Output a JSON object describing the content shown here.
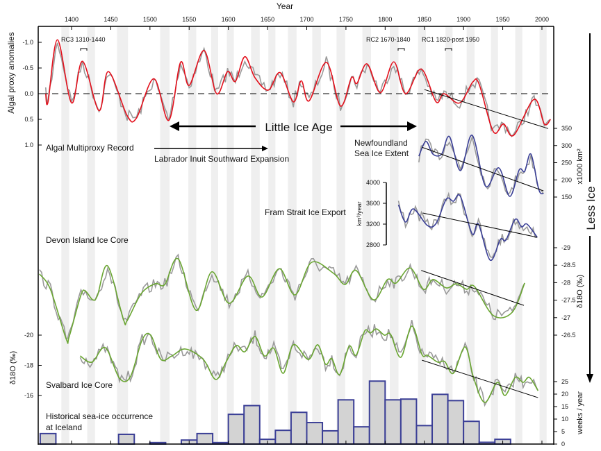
{
  "chart_data": {
    "type": "line",
    "xlabel": "Year",
    "x_ticks": [
      1400,
      1450,
      1500,
      1550,
      1600,
      1650,
      1700,
      1750,
      1800,
      1850,
      1900,
      1950,
      2000
    ],
    "xlim": [
      1357,
      2015
    ],
    "shaded_periods": [
      [
        1387,
        1397
      ],
      [
        1420,
        1430
      ],
      [
        1458,
        1472
      ],
      [
        1513,
        1525
      ],
      [
        1549,
        1559
      ],
      [
        1578,
        1587
      ],
      [
        1598,
        1607
      ],
      [
        1629,
        1640
      ],
      [
        1651,
        1660
      ],
      [
        1676,
        1687
      ],
      [
        1707,
        1718
      ],
      [
        1738,
        1749
      ],
      [
        1771,
        1782
      ],
      [
        1806,
        1817
      ],
      [
        1842,
        1852
      ],
      [
        1877,
        1886
      ],
      [
        1904,
        1914
      ],
      [
        1935,
        1944
      ],
      [
        1966,
        1975
      ],
      [
        1997,
        2006
      ]
    ],
    "colors": {
      "algal": "#e3101c",
      "raw": "#9a9a9a",
      "sea_ice": "#3a3f96",
      "isotope": "#6aa632",
      "bars_fill": "#d3d3d3",
      "bars_edge": "#3b3f96",
      "trend": "#000000"
    },
    "panels": {
      "algal": {
        "label": "Algal Multiproxy Record",
        "ylabel": "Algal proxy anomalies",
        "y_ticks": [
          "-1.0",
          "-0.5",
          "0.0",
          "0.5",
          "1.0"
        ],
        "ylim": [
          -1.25,
          1.0
        ],
        "inverted": true,
        "smoothed": [
          [
            1367,
            0.0
          ],
          [
            1370,
            0.16
          ],
          [
            1382,
            -1.05
          ],
          [
            1400,
            0.18
          ],
          [
            1414,
            -0.63
          ],
          [
            1435,
            0.33
          ],
          [
            1447,
            -0.43
          ],
          [
            1471,
            0.43
          ],
          [
            1483,
            0.47
          ],
          [
            1505,
            -0.29
          ],
          [
            1524,
            0.52
          ],
          [
            1539,
            -0.61
          ],
          [
            1550,
            -0.16
          ],
          [
            1569,
            -0.84
          ],
          [
            1585,
            0.0
          ],
          [
            1599,
            -0.43
          ],
          [
            1609,
            -0.24
          ],
          [
            1621,
            -0.72
          ],
          [
            1634,
            -0.31
          ],
          [
            1651,
            -0.07
          ],
          [
            1666,
            -0.41
          ],
          [
            1683,
            0.16
          ],
          [
            1693,
            -0.25
          ],
          [
            1703,
            0.14
          ],
          [
            1725,
            -0.61
          ],
          [
            1743,
            0.24
          ],
          [
            1757,
            -0.31
          ],
          [
            1764,
            -0.2
          ],
          [
            1777,
            -0.58
          ],
          [
            1794,
            -0.02
          ],
          [
            1811,
            -0.62
          ],
          [
            1826,
            0.0
          ],
          [
            1846,
            -0.48
          ],
          [
            1865,
            0.16
          ],
          [
            1875,
            0.0
          ],
          [
            1895,
            0.18
          ],
          [
            1912,
            -0.23
          ],
          [
            1920,
            -0.18
          ],
          [
            1938,
            0.74
          ],
          [
            1951,
            0.59
          ],
          [
            1964,
            0.81
          ],
          [
            1990,
            0.11
          ],
          [
            2003,
            0.59
          ],
          [
            2011,
            0.5
          ]
        ],
        "trend": [
          [
            1850,
            -0.08
          ],
          [
            2008,
            0.68
          ]
        ]
      },
      "sea_ice_extent": {
        "label_lines": [
          "Newfoundland",
          "Sea Ice Extent"
        ],
        "unit": "x1000 km²",
        "y_ticks": [
          "350",
          "300",
          "250",
          "200",
          "150"
        ],
        "smoothed": [
          [
            1843,
            269
          ],
          [
            1852,
            312
          ],
          [
            1861,
            275
          ],
          [
            1872,
            275
          ],
          [
            1882,
            326
          ],
          [
            1896,
            227
          ],
          [
            1911,
            330
          ],
          [
            1928,
            182
          ],
          [
            1945,
            235
          ],
          [
            1959,
            152
          ],
          [
            1971,
            229
          ],
          [
            1978,
            225
          ],
          [
            1986,
            275
          ],
          [
            1996,
            172
          ],
          [
            2002,
            160
          ]
        ],
        "trend": [
          [
            1847,
            295
          ],
          [
            2002,
            168
          ]
        ]
      },
      "fram_strait": {
        "label": "Fram Strait Ice Export",
        "unit": "km³/year",
        "y_ticks": [
          "4000",
          "3600",
          "3200",
          "2800"
        ],
        "smoothed": [
          [
            1817,
            3573
          ],
          [
            1826,
            3240
          ],
          [
            1836,
            3493
          ],
          [
            1854,
            3173
          ],
          [
            1865,
            3213
          ],
          [
            1878,
            3680
          ],
          [
            1887,
            3640
          ],
          [
            1896,
            3733
          ],
          [
            1911,
            3013
          ],
          [
            1919,
            3200
          ],
          [
            1934,
            2507
          ],
          [
            1947,
            2907
          ],
          [
            1954,
            2893
          ],
          [
            1966,
            3293
          ],
          [
            1974,
            3147
          ],
          [
            1981,
            3200
          ],
          [
            1994,
            2947
          ]
        ],
        "trend": [
          [
            1848,
            3413
          ],
          [
            1994,
            2947
          ]
        ]
      },
      "devon": {
        "label": "Devon Island Ice Core",
        "unit": "δ18O (‰)",
        "y_ticks": [
          "-29",
          "-28.5",
          "-28",
          "-27.5",
          "-27",
          "-26.5"
        ],
        "smoothed": [
          [
            1359,
            -28.25
          ],
          [
            1373,
            -27.81
          ],
          [
            1393,
            -26.4
          ],
          [
            1397,
            -26.46
          ],
          [
            1412,
            -27.65
          ],
          [
            1418,
            -27.75
          ],
          [
            1427,
            -27.51
          ],
          [
            1433,
            -27.63
          ],
          [
            1446,
            -28.48
          ],
          [
            1466,
            -26.96
          ],
          [
            1471,
            -26.92
          ],
          [
            1489,
            -27.69
          ],
          [
            1507,
            -27.97
          ],
          [
            1519,
            -27.95
          ],
          [
            1536,
            -28.68
          ],
          [
            1559,
            -27.21
          ],
          [
            1579,
            -28.31
          ],
          [
            1601,
            -27.41
          ],
          [
            1625,
            -28.19
          ],
          [
            1643,
            -27.59
          ],
          [
            1665,
            -28.4
          ],
          [
            1685,
            -27.65
          ],
          [
            1706,
            -28.58
          ],
          [
            1734,
            -28.27
          ],
          [
            1749,
            -27.95
          ],
          [
            1763,
            -28.35
          ],
          [
            1785,
            -27.51
          ],
          [
            1803,
            -28.09
          ],
          [
            1814,
            -27.99
          ],
          [
            1832,
            -28.42
          ],
          [
            1849,
            -27.81
          ],
          [
            1861,
            -28.09
          ],
          [
            1878,
            -27.85
          ],
          [
            1891,
            -27.97
          ],
          [
            1904,
            -27.81
          ],
          [
            1914,
            -27.89
          ],
          [
            1938,
            -27.06
          ],
          [
            1962,
            -27.15
          ],
          [
            1978,
            -27.99
          ]
        ],
        "trend": [
          [
            1846,
            -28.35
          ],
          [
            1977,
            -27.35
          ]
        ]
      },
      "svalbard": {
        "label": "Svalbard Ice Core",
        "unit": "δ18O (‰)",
        "y_ticks": [
          "-20",
          "-18",
          "-16"
        ],
        "smoothed": [
          [
            1411,
            -18.62
          ],
          [
            1426,
            -18.21
          ],
          [
            1443,
            -19.17
          ],
          [
            1461,
            -17.15
          ],
          [
            1475,
            -17.24
          ],
          [
            1490,
            -19.68
          ],
          [
            1501,
            -20.0
          ],
          [
            1514,
            -18.39
          ],
          [
            1528,
            -18.62
          ],
          [
            1545,
            -19.08
          ],
          [
            1568,
            -18.39
          ],
          [
            1584,
            -17.06
          ],
          [
            1597,
            -18.21
          ],
          [
            1610,
            -19.31
          ],
          [
            1621,
            -18.9
          ],
          [
            1634,
            -19.91
          ],
          [
            1646,
            -18.62
          ],
          [
            1658,
            -19.13
          ],
          [
            1670,
            -17.47
          ],
          [
            1683,
            -19.36
          ],
          [
            1702,
            -18.39
          ],
          [
            1714,
            -19.36
          ],
          [
            1724,
            -18.07
          ],
          [
            1732,
            -18.44
          ],
          [
            1742,
            -17.38
          ],
          [
            1754,
            -19.26
          ],
          [
            1763,
            -18.67
          ],
          [
            1774,
            -20.28
          ],
          [
            1781,
            -20.14
          ],
          [
            1789,
            -20.41
          ],
          [
            1799,
            -20.0
          ],
          [
            1807,
            -20.05
          ],
          [
            1820,
            -18.53
          ],
          [
            1834,
            -20.6
          ],
          [
            1847,
            -18.71
          ],
          [
            1854,
            -18.67
          ],
          [
            1867,
            -18.21
          ],
          [
            1876,
            -18.25
          ],
          [
            1887,
            -17.47
          ],
          [
            1902,
            -19.22
          ],
          [
            1913,
            -17.15
          ],
          [
            1927,
            -15.54
          ],
          [
            1943,
            -16.87
          ],
          [
            1953,
            -16.0
          ],
          [
            1966,
            -17.2
          ],
          [
            1976,
            -16.87
          ],
          [
            1984,
            -17.2
          ],
          [
            1995,
            -16.32
          ]
        ],
        "trend": [
          [
            1847,
            -18.34
          ],
          [
            1995,
            -15.86
          ]
        ]
      },
      "iceland": {
        "type": "bar",
        "label_lines": [
          "Historical sea-ice occurrence",
          "at Iceland"
        ],
        "unit": "weeks / year",
        "y_ticks": [
          "25",
          "20",
          "15",
          "10",
          "5",
          "0"
        ],
        "bin_years": 20,
        "bars": [
          [
            1360,
            4.2
          ],
          [
            1460,
            3.9
          ],
          [
            1500,
            0.6
          ],
          [
            1540,
            1.6
          ],
          [
            1560,
            4.2
          ],
          [
            1580,
            0.6
          ],
          [
            1600,
            11.9
          ],
          [
            1620,
            15.4
          ],
          [
            1640,
            1.9
          ],
          [
            1660,
            5.5
          ],
          [
            1680,
            12.7
          ],
          [
            1700,
            8.6
          ],
          [
            1720,
            5.3
          ],
          [
            1740,
            17.7
          ],
          [
            1760,
            6.9
          ],
          [
            1780,
            25.2
          ],
          [
            1800,
            17.7
          ],
          [
            1820,
            18.0
          ],
          [
            1840,
            7.4
          ],
          [
            1860,
            19.9
          ],
          [
            1880,
            17.4
          ],
          [
            1900,
            9.1
          ],
          [
            1920,
            0.7
          ],
          [
            1940,
            1.9
          ]
        ]
      }
    },
    "annotations": {
      "rc3": "RC3 1310-1440",
      "rc2": "RC2 1670-1840",
      "rc1": "RC1 1820-post 1950",
      "little_ice_age": "Little Ice Age",
      "labrador": "Labrador Inuit Southward Expansion",
      "less_ice": "Less Ice"
    }
  }
}
